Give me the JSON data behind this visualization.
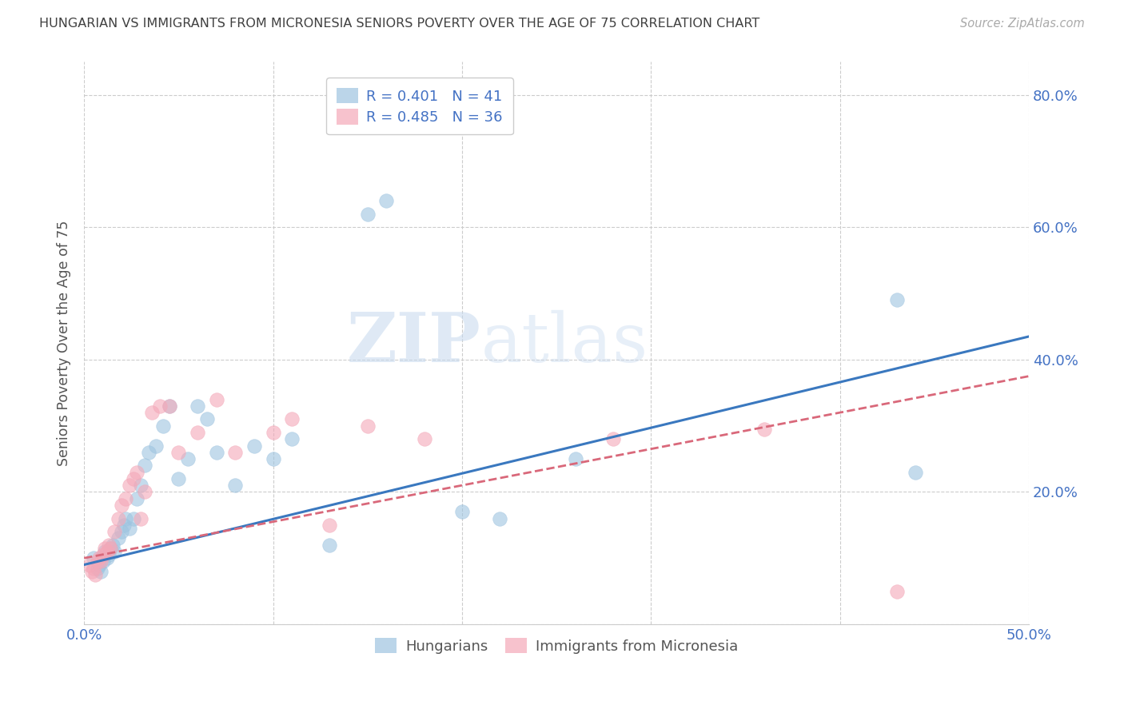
{
  "title": "HUNGARIAN VS IMMIGRANTS FROM MICRONESIA SENIORS POVERTY OVER THE AGE OF 75 CORRELATION CHART",
  "source": "Source: ZipAtlas.com",
  "ylabel": "Seniors Poverty Over the Age of 75",
  "xlim": [
    0.0,
    0.5
  ],
  "ylim": [
    0.0,
    0.85
  ],
  "yticks": [
    0.0,
    0.2,
    0.4,
    0.6,
    0.8
  ],
  "ytick_labels": [
    "",
    "20.0%",
    "40.0%",
    "60.0%",
    "80.0%"
  ],
  "xticks": [
    0.0,
    0.1,
    0.2,
    0.3,
    0.4,
    0.5
  ],
  "xtick_labels": [
    "0.0%",
    "",
    "",
    "",
    "",
    "50.0%"
  ],
  "series1_label": "Hungarians",
  "series1_color": "#9ec4e0",
  "series2_label": "Immigrants from Micronesia",
  "series2_color": "#f4a8b8",
  "watermark_text": "ZIPatlas",
  "background_color": "#ffffff",
  "grid_color": "#cccccc",
  "axis_color": "#4472c4",
  "title_color": "#404040",
  "legend1_text": "R = 0.401   N = 41",
  "legend2_text": "R = 0.485   N = 36",
  "trend1_color": "#3a78bf",
  "trend2_color": "#d9687a",
  "scatter1_x": [
    0.005,
    0.007,
    0.008,
    0.009,
    0.01,
    0.011,
    0.012,
    0.013,
    0.014,
    0.015,
    0.016,
    0.018,
    0.02,
    0.021,
    0.022,
    0.024,
    0.026,
    0.028,
    0.03,
    0.032,
    0.034,
    0.038,
    0.042,
    0.045,
    0.05,
    0.055,
    0.06,
    0.065,
    0.07,
    0.08,
    0.09,
    0.1,
    0.11,
    0.13,
    0.15,
    0.16,
    0.2,
    0.22,
    0.26,
    0.43,
    0.44
  ],
  "scatter1_y": [
    0.1,
    0.085,
    0.09,
    0.08,
    0.095,
    0.11,
    0.1,
    0.105,
    0.115,
    0.12,
    0.11,
    0.13,
    0.14,
    0.15,
    0.16,
    0.145,
    0.16,
    0.19,
    0.21,
    0.24,
    0.26,
    0.27,
    0.3,
    0.33,
    0.22,
    0.25,
    0.33,
    0.31,
    0.26,
    0.21,
    0.27,
    0.25,
    0.28,
    0.12,
    0.62,
    0.64,
    0.17,
    0.16,
    0.25,
    0.49,
    0.23
  ],
  "scatter2_x": [
    0.003,
    0.004,
    0.005,
    0.006,
    0.007,
    0.008,
    0.009,
    0.01,
    0.011,
    0.012,
    0.013,
    0.014,
    0.016,
    0.018,
    0.02,
    0.022,
    0.024,
    0.026,
    0.028,
    0.03,
    0.032,
    0.036,
    0.04,
    0.045,
    0.05,
    0.06,
    0.07,
    0.08,
    0.1,
    0.11,
    0.13,
    0.15,
    0.18,
    0.28,
    0.36,
    0.43
  ],
  "scatter2_y": [
    0.09,
    0.08,
    0.085,
    0.075,
    0.095,
    0.1,
    0.095,
    0.105,
    0.115,
    0.11,
    0.12,
    0.115,
    0.14,
    0.16,
    0.18,
    0.19,
    0.21,
    0.22,
    0.23,
    0.16,
    0.2,
    0.32,
    0.33,
    0.33,
    0.26,
    0.29,
    0.34,
    0.26,
    0.29,
    0.31,
    0.15,
    0.3,
    0.28,
    0.28,
    0.295,
    0.05
  ],
  "trend1_x_start": 0.0,
  "trend1_x_end": 0.5,
  "trend1_y_start": 0.09,
  "trend1_y_end": 0.435,
  "trend2_x_start": 0.0,
  "trend2_x_end": 0.5,
  "trend2_y_start": 0.1,
  "trend2_y_end": 0.375
}
